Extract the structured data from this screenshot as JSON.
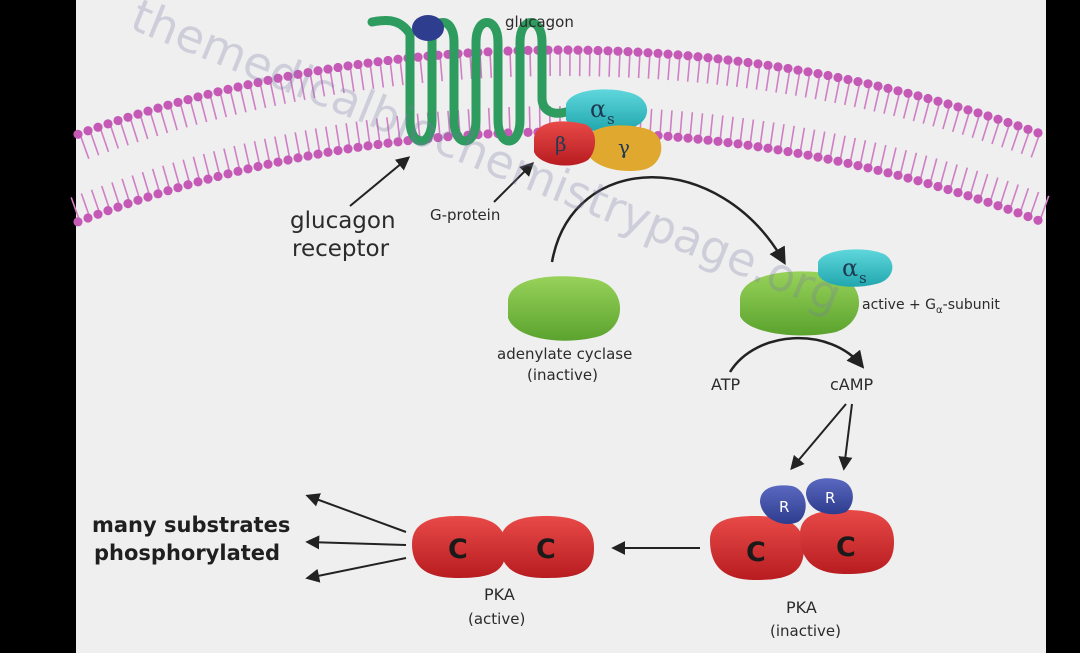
{
  "diagram": {
    "labels": {
      "glucagon": "glucagon",
      "glucagon_receptor_line1": "glucagon",
      "glucagon_receptor_line2": "receptor",
      "g_protein": "G-protein",
      "alpha_s": "α",
      "alpha_s_sub": "s",
      "beta": "β",
      "gamma": "γ",
      "adenylate_cyclase_line1": "adenylate cyclase",
      "adenylate_cyclase_line2": "(inactive)",
      "active_alpha_s": "α",
      "active_alpha_s_sub": "s",
      "active_subunit_prefix": "active + G",
      "active_subunit_sub": "α",
      "active_subunit_suffix": "-subunit",
      "atp": "ATP",
      "camp": "cAMP",
      "regulatory_r1": "R",
      "regulatory_r2": "R",
      "catalytic_c_inactive_1": "C",
      "catalytic_c_inactive_2": "C",
      "pka_inactive_line1": "PKA",
      "pka_inactive_line2": "(inactive)",
      "catalytic_c_active_1": "C",
      "catalytic_c_active_2": "C",
      "pka_active_line1": "PKA",
      "pka_active_line2": "(active)",
      "substrates_line1": "many substrates",
      "substrates_line2": "phosphorylated"
    },
    "watermark": "themedicalbiochemistrypage.org",
    "colors": {
      "background": "#efefef",
      "frame": "#000000",
      "membrane_head": "#c45ab6",
      "membrane_tail": "#d07fc6",
      "receptor": "#2e9b5f",
      "glucagon_ligand": "#2f3d8f",
      "alpha_subunit": "#34c4c9",
      "beta_subunit": "#d8302e",
      "gamma_subunit": "#e0a82e",
      "adenylate_cyclase": "#7cc242",
      "pka_catalytic": "#d9262a",
      "pka_regulatory": "#3f4ea8",
      "arrow": "#222222"
    }
  }
}
